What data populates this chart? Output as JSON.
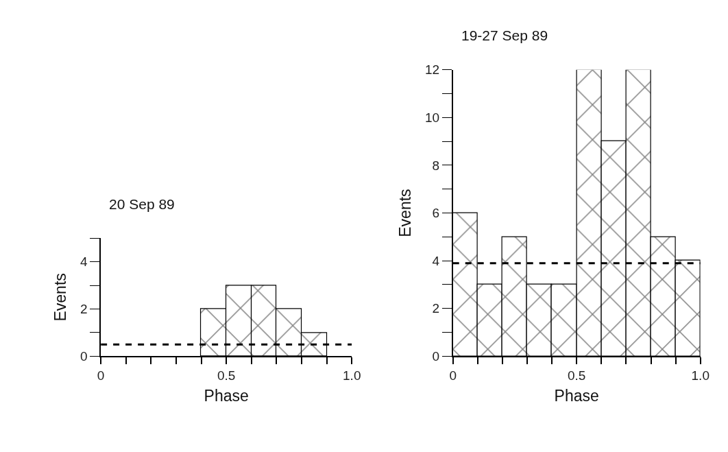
{
  "chart_data": [
    {
      "type": "histogram",
      "title": "20 Sep 89",
      "xlabel": "Phase",
      "ylabel": "Events",
      "color": "#000000",
      "bins": [
        0,
        0.1,
        0.2,
        0.3,
        0.4,
        0.5,
        0.6,
        0.7,
        0.8,
        0.9,
        1.0
      ],
      "values": [
        0,
        0,
        0,
        0,
        2,
        3,
        3,
        2,
        1,
        0
      ],
      "xlim": [
        0,
        1.0
      ],
      "xticks": [
        0,
        {
          "value": 0.1,
          "label": null
        },
        {
          "value": 0.2,
          "label": null
        },
        {
          "value": 0.3,
          "label": null
        },
        {
          "value": 0.4,
          "label": null
        },
        0.5,
        {
          "value": 0.6,
          "label": null
        },
        {
          "value": 0.7,
          "label": null
        },
        {
          "value": 0.8,
          "label": null
        },
        {
          "value": 0.9,
          "label": null
        },
        {
          "value": 1.0,
          "label": "1.0"
        }
      ],
      "ylim": [
        0,
        5
      ],
      "yticks": [
        0,
        {
          "value": 1,
          "label": null
        },
        2,
        {
          "value": 3,
          "label": null
        },
        4,
        {
          "value": 5,
          "label": null
        }
      ],
      "ref_lines": [
        {
          "axis": "y",
          "value": 0.5,
          "color": "#000000",
          "line_style": "dashed"
        }
      ]
    },
    {
      "type": "histogram",
      "title": "19-27 Sep 89",
      "xlabel": "Phase",
      "ylabel": "Events",
      "color": "#000000",
      "bins": [
        0,
        0.1,
        0.2,
        0.3,
        0.4,
        0.5,
        0.6,
        0.7,
        0.8,
        0.9,
        1.0
      ],
      "values": [
        6,
        3,
        5,
        3,
        3,
        12,
        9,
        12,
        5,
        4
      ],
      "xlim": [
        0,
        1.0
      ],
      "xticks": [
        0,
        {
          "value": 0.1,
          "label": null
        },
        {
          "value": 0.2,
          "label": null
        },
        {
          "value": 0.3,
          "label": null
        },
        {
          "value": 0.4,
          "label": null
        },
        0.5,
        {
          "value": 0.6,
          "label": null
        },
        {
          "value": 0.7,
          "label": null
        },
        {
          "value": 0.8,
          "label": null
        },
        {
          "value": 0.9,
          "label": null
        },
        {
          "value": 1.0,
          "label": "1.0"
        }
      ],
      "ylim": [
        0,
        12
      ],
      "yticks": [
        0,
        {
          "value": 1,
          "label": null
        },
        2,
        {
          "value": 3,
          "label": null
        },
        4,
        {
          "value": 5,
          "label": null
        },
        6,
        {
          "value": 7,
          "label": null
        },
        8,
        {
          "value": 9,
          "label": null
        },
        10,
        {
          "value": 11,
          "label": null
        },
        12
      ],
      "ref_lines": [
        {
          "axis": "y",
          "value": 3.9,
          "color": "#000000",
          "line_style": "dashed"
        }
      ]
    }
  ]
}
